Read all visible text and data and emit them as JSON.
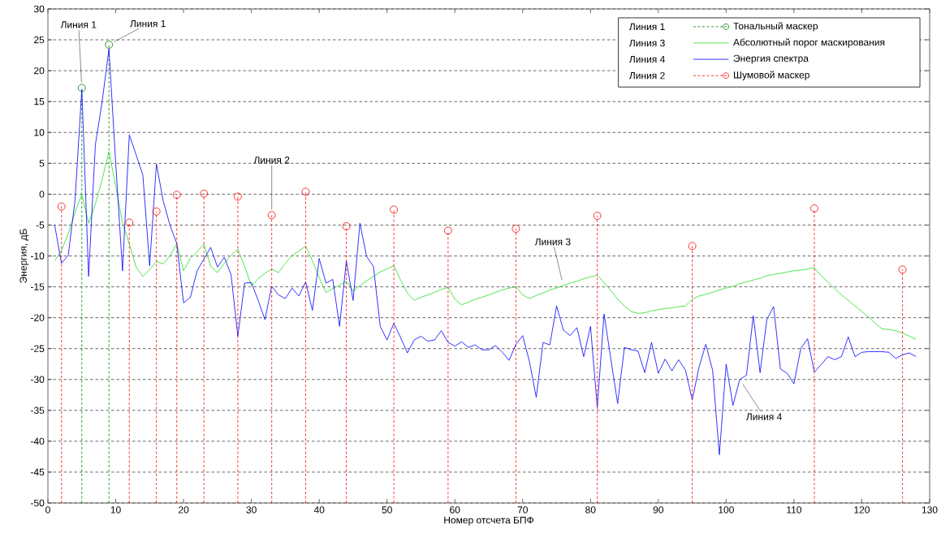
{
  "chart_data": {
    "type": "line",
    "xlabel": "Номер отсчета БПФ",
    "ylabel": "Энергия, дБ",
    "x": [
      1,
      2,
      3,
      4,
      5,
      6,
      7,
      8,
      9,
      10,
      11,
      12,
      13,
      14,
      15,
      16,
      17,
      18,
      19,
      20,
      21,
      22,
      23,
      24,
      25,
      26,
      27,
      28,
      29,
      30,
      31,
      32,
      33,
      34,
      35,
      36,
      37,
      38,
      39,
      40,
      41,
      42,
      43,
      44,
      45,
      46,
      47,
      48,
      49,
      50,
      51,
      52,
      53,
      54,
      55,
      56,
      57,
      58,
      59,
      60,
      61,
      62,
      63,
      64,
      65,
      66,
      67,
      68,
      69,
      70,
      71,
      72,
      73,
      74,
      75,
      76,
      77,
      78,
      79,
      80,
      81,
      82,
      83,
      84,
      85,
      86,
      87,
      88,
      89,
      90,
      91,
      92,
      93,
      94,
      95,
      96,
      97,
      98,
      99,
      100,
      101,
      102,
      103,
      104,
      105,
      106,
      107,
      108,
      109,
      110,
      111,
      112,
      113,
      114,
      115,
      116,
      117,
      118,
      119,
      120,
      121,
      122,
      123,
      124,
      125,
      126,
      127,
      128
    ],
    "series": [
      {
        "name": "Тональный маскер",
        "type": "scatter",
        "color": "#008000",
        "marker": "circle",
        "line_style": "dashed",
        "x": [
          5,
          9
        ],
        "values": [
          17.2,
          24.2
        ],
        "errors": [
          [
            -50,
            17.2
          ],
          [
            -50,
            24.2
          ]
        ]
      },
      {
        "name": "Абсолютный порог маскирования",
        "color": "#22dd22",
        "values": [
          -10.8,
          -9.1,
          -6.4,
          -2.9,
          0,
          -4.7,
          -1.6,
          2.4,
          6.9,
          1.3,
          -4.7,
          -8.0,
          -11.8,
          -13.3,
          -12.2,
          -10.9,
          -11.3,
          -10.0,
          -8.0,
          -12.4,
          -10.4,
          -9.3,
          -8.1,
          -11.7,
          -12.7,
          -11.2,
          -9.9,
          -8.9,
          -11.7,
          -14.8,
          -13.7,
          -12.8,
          -12.1,
          -12.7,
          -11.2,
          -9.9,
          -9.2,
          -8.4,
          -10.8,
          -13.5,
          -15.9,
          -15.3,
          -14.7,
          -14.1,
          -15.7,
          -14.8,
          -14.0,
          -13.3,
          -12.6,
          -12.1,
          -11.6,
          -13.9,
          -16.0,
          -17.2,
          -16.7,
          -16.3,
          -15.9,
          -15.4,
          -15.1,
          -17.0,
          -17.9,
          -17.5,
          -17.0,
          -16.7,
          -16.3,
          -15.9,
          -15.5,
          -15.2,
          -15.0,
          -16.3,
          -16.9,
          -16.4,
          -16.0,
          -15.5,
          -15.2,
          -14.8,
          -14.4,
          -14.1,
          -13.7,
          -13.4,
          -13.1,
          -14.3,
          -15.6,
          -17.0,
          -18.1,
          -19.0,
          -19.3,
          -19.2,
          -18.9,
          -18.7,
          -18.5,
          -18.4,
          -18.2,
          -18.1,
          -17.0,
          -16.5,
          -16.2,
          -15.9,
          -15.5,
          -15.2,
          -14.9,
          -14.5,
          -14.2,
          -13.9,
          -13.6,
          -13.2,
          -13.0,
          -12.8,
          -12.6,
          -12.4,
          -12.3,
          -12.1,
          -11.9,
          -13.2,
          -14.2,
          -15.3,
          -16.3,
          -17.2,
          -18.1,
          -19.0,
          -19.9,
          -20.9,
          -21.8,
          -21.9,
          -22.1,
          -22.5,
          -23.0,
          -23.5
        ]
      },
      {
        "name": "Энергия спектра",
        "color": "#0000ff",
        "values": [
          -5.0,
          -11.2,
          -9.9,
          -1,
          17,
          -13.3,
          8,
          15,
          23.5,
          5,
          -12.4,
          9.6,
          6.4,
          3.1,
          -11.6,
          4.9,
          -1.1,
          -5,
          -8.0,
          -17.6,
          -16.7,
          -12.4,
          -10.5,
          -8.6,
          -11.8,
          -10.2,
          -13.0,
          -23.0,
          -14.4,
          -14.3,
          -17.2,
          -20.3,
          -14.9,
          -16.3,
          -16.9,
          -15.2,
          -16.5,
          -14.2,
          -18.8,
          -10.4,
          -14.4,
          -13.8,
          -21.4,
          -10.8,
          -17.2,
          -4.7,
          -10.1,
          -11.7,
          -21.4,
          -23.6,
          -20.9,
          -23.2,
          -25.7,
          -23.6,
          -23.0,
          -23.8,
          -23.6,
          -22.1,
          -24.0,
          -24.6,
          -23.9,
          -24.8,
          -24.4,
          -25.2,
          -25.2,
          -24.5,
          -25.6,
          -26.9,
          -24.3,
          -22.9,
          -27.1,
          -32.9,
          -24.0,
          -24.4,
          -18.1,
          -22.0,
          -22.9,
          -21.6,
          -26.3,
          -21.4,
          -34.5,
          -19.4,
          -26.7,
          -33.9,
          -24.8,
          -25.2,
          -25.4,
          -28.9,
          -24.0,
          -29.0,
          -26.7,
          -28.6,
          -26.8,
          -28.5,
          -33.3,
          -28.0,
          -24.3,
          -28.5,
          -42.2,
          -27.5,
          -34.2,
          -30.0,
          -29.3,
          -19.7,
          -28.9,
          -20.3,
          -18.2,
          -28.3,
          -29.0,
          -30.7,
          -25.0,
          -23.4,
          -28.8,
          -27.6,
          -26.3,
          -26.8,
          -26.3,
          -23.1,
          -26.3,
          -25.6,
          -25.5,
          -25.5,
          -25.5,
          -25.6,
          -26.6,
          -26.0,
          -25.7,
          -26.3
        ]
      },
      {
        "name": "Шумовой маскер",
        "type": "scatter",
        "color": "#ff0000",
        "marker": "circle",
        "line_style": "dashed",
        "x": [
          2,
          12,
          16,
          19,
          23,
          28,
          33,
          38,
          44,
          51,
          59,
          69,
          81,
          95,
          113,
          126
        ],
        "values": [
          -2,
          -4.6,
          -2.8,
          -0.1,
          0.1,
          -0.4,
          -3.4,
          0.4,
          -5.2,
          -2.5,
          -5.9,
          -5.6,
          -3.5,
          -8.4,
          -2.3,
          -12.2
        ],
        "errors": [
          [
            -50,
            -2
          ],
          [
            -50,
            -4.6
          ],
          [
            -50,
            -2.8
          ],
          [
            -50,
            -0.1
          ],
          [
            -50,
            0.1
          ],
          [
            -50,
            -0.4
          ],
          [
            -50,
            -3.4
          ],
          [
            -50,
            0.4
          ],
          [
            -50,
            -5.2
          ],
          [
            -50,
            -2.5
          ],
          [
            -50,
            -5.9
          ],
          [
            -50,
            -5.6
          ],
          [
            -50,
            -3.5
          ],
          [
            -50,
            -8.4
          ],
          [
            -50,
            -2.3
          ],
          [
            -50,
            -12.2
          ]
        ]
      }
    ],
    "annotations": [
      "Линия 1",
      "Линия 3",
      "Линия 4",
      "Линия 2",
      {
        "text": "Линия 1",
        "x": 5,
        "y": 17.2
      },
      {
        "text": "Линия 1",
        "x": 9,
        "y": 24.2
      },
      {
        "text": "Линия 2",
        "x": 33,
        "y": -3.4
      },
      {
        "text": "Линия 3",
        "x": 76,
        "y": -14.8
      },
      {
        "text": "Линия 4",
        "x": 102,
        "y": -30.0
      }
    ],
    "xlim": [
      0,
      130
    ],
    "xticks": [
      0,
      10,
      20,
      30,
      40,
      50,
      60,
      70,
      80,
      90,
      100,
      110,
      120,
      130
    ],
    "ylim": [
      -50,
      30
    ],
    "yticks": [
      -50,
      -45,
      -40,
      -35,
      -30,
      -25,
      -20,
      -15,
      -10,
      -5,
      0,
      5,
      10,
      15,
      20,
      25,
      30
    ],
    "grid": "y",
    "legend": "top right"
  }
}
